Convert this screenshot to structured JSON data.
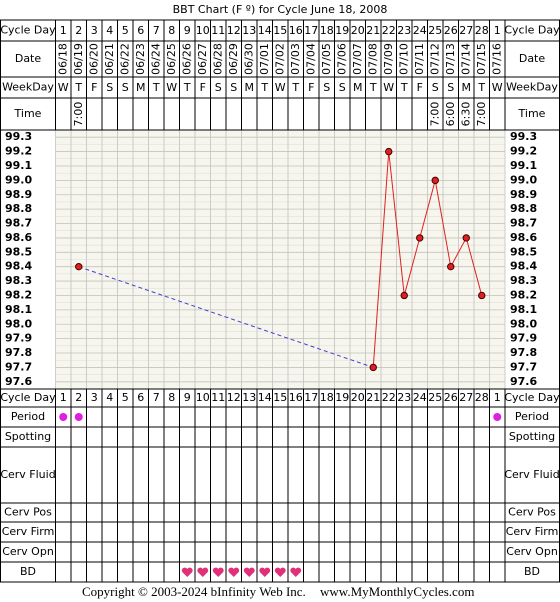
{
  "title": "BBT Chart (F º) for Cycle June 18, 2008",
  "row_labels": {
    "cycle_day": "Cycle Day",
    "date": "Date",
    "weekday": "WeekDay",
    "time": "Time",
    "period": "Period",
    "spotting": "Spotting",
    "cerv_fluid": "Cerv Fluid",
    "cerv_pos": "Cerv Pos",
    "cerv_firm": "Cerv Firm",
    "cerv_opn": "Cerv Opn",
    "bd": "BD"
  },
  "chart_data": {
    "type": "line",
    "categories": [
      "1",
      "2",
      "3",
      "4",
      "5",
      "6",
      "7",
      "8",
      "9",
      "10",
      "11",
      "12",
      "13",
      "14",
      "15",
      "16",
      "17",
      "18",
      "19",
      "20",
      "21",
      "22",
      "23",
      "24",
      "25",
      "26",
      "27",
      "28",
      "1"
    ],
    "dates": [
      "06/18",
      "06/19",
      "06/20",
      "06/21",
      "06/22",
      "06/23",
      "06/24",
      "06/25",
      "06/26",
      "06/27",
      "06/28",
      "06/29",
      "06/30",
      "07/01",
      "07/02",
      "07/03",
      "07/04",
      "07/05",
      "07/06",
      "07/07",
      "07/08",
      "07/09",
      "07/10",
      "07/11",
      "07/12",
      "07/13",
      "07/14",
      "07/15",
      "07/16"
    ],
    "weekdays": [
      "W",
      "T",
      "F",
      "S",
      "S",
      "M",
      "T",
      "W",
      "T",
      "F",
      "S",
      "S",
      "M",
      "T",
      "W",
      "T",
      "F",
      "S",
      "S",
      "M",
      "T",
      "W",
      "T",
      "F",
      "S",
      "S",
      "M",
      "T",
      "W"
    ],
    "times": [
      null,
      "7:00",
      null,
      null,
      null,
      null,
      null,
      null,
      null,
      null,
      null,
      null,
      null,
      null,
      null,
      null,
      null,
      null,
      null,
      null,
      null,
      null,
      null,
      null,
      "7:00",
      "6:00",
      "6:30",
      "7:00",
      null
    ],
    "values": [
      null,
      98.4,
      null,
      null,
      null,
      null,
      null,
      null,
      null,
      null,
      null,
      null,
      null,
      null,
      null,
      null,
      null,
      null,
      null,
      null,
      97.7,
      99.2,
      98.2,
      98.6,
      99.0,
      98.4,
      98.6,
      98.2,
      null
    ],
    "color": "#e02020",
    "ylim": [
      97.55,
      99.35
    ],
    "yticks": [
      97.6,
      97.7,
      97.8,
      97.9,
      {
        "value": 98,
        "label": "98.0"
      },
      98.1,
      98.2,
      98.3,
      98.4,
      98.5,
      98.6,
      98.7,
      98.8,
      98.9,
      {
        "value": 99,
        "label": "99.0"
      },
      99.1,
      99.2,
      99.3
    ],
    "grid": true
  },
  "period": [
    true,
    true,
    false,
    false,
    false,
    false,
    false,
    false,
    false,
    false,
    false,
    false,
    false,
    false,
    false,
    false,
    false,
    false,
    false,
    false,
    false,
    false,
    false,
    false,
    false,
    false,
    false,
    false,
    true
  ],
  "bd": [
    false,
    false,
    false,
    false,
    false,
    false,
    false,
    false,
    true,
    true,
    true,
    true,
    true,
    true,
    true,
    true,
    false,
    false,
    false,
    false,
    false,
    false,
    false,
    false,
    false,
    false,
    false,
    false,
    false
  ],
  "footer": {
    "copyright": "Copyright © 2003-2024 bInfinity Web Inc.",
    "site": "www.MyMonthlyCycles.com"
  }
}
